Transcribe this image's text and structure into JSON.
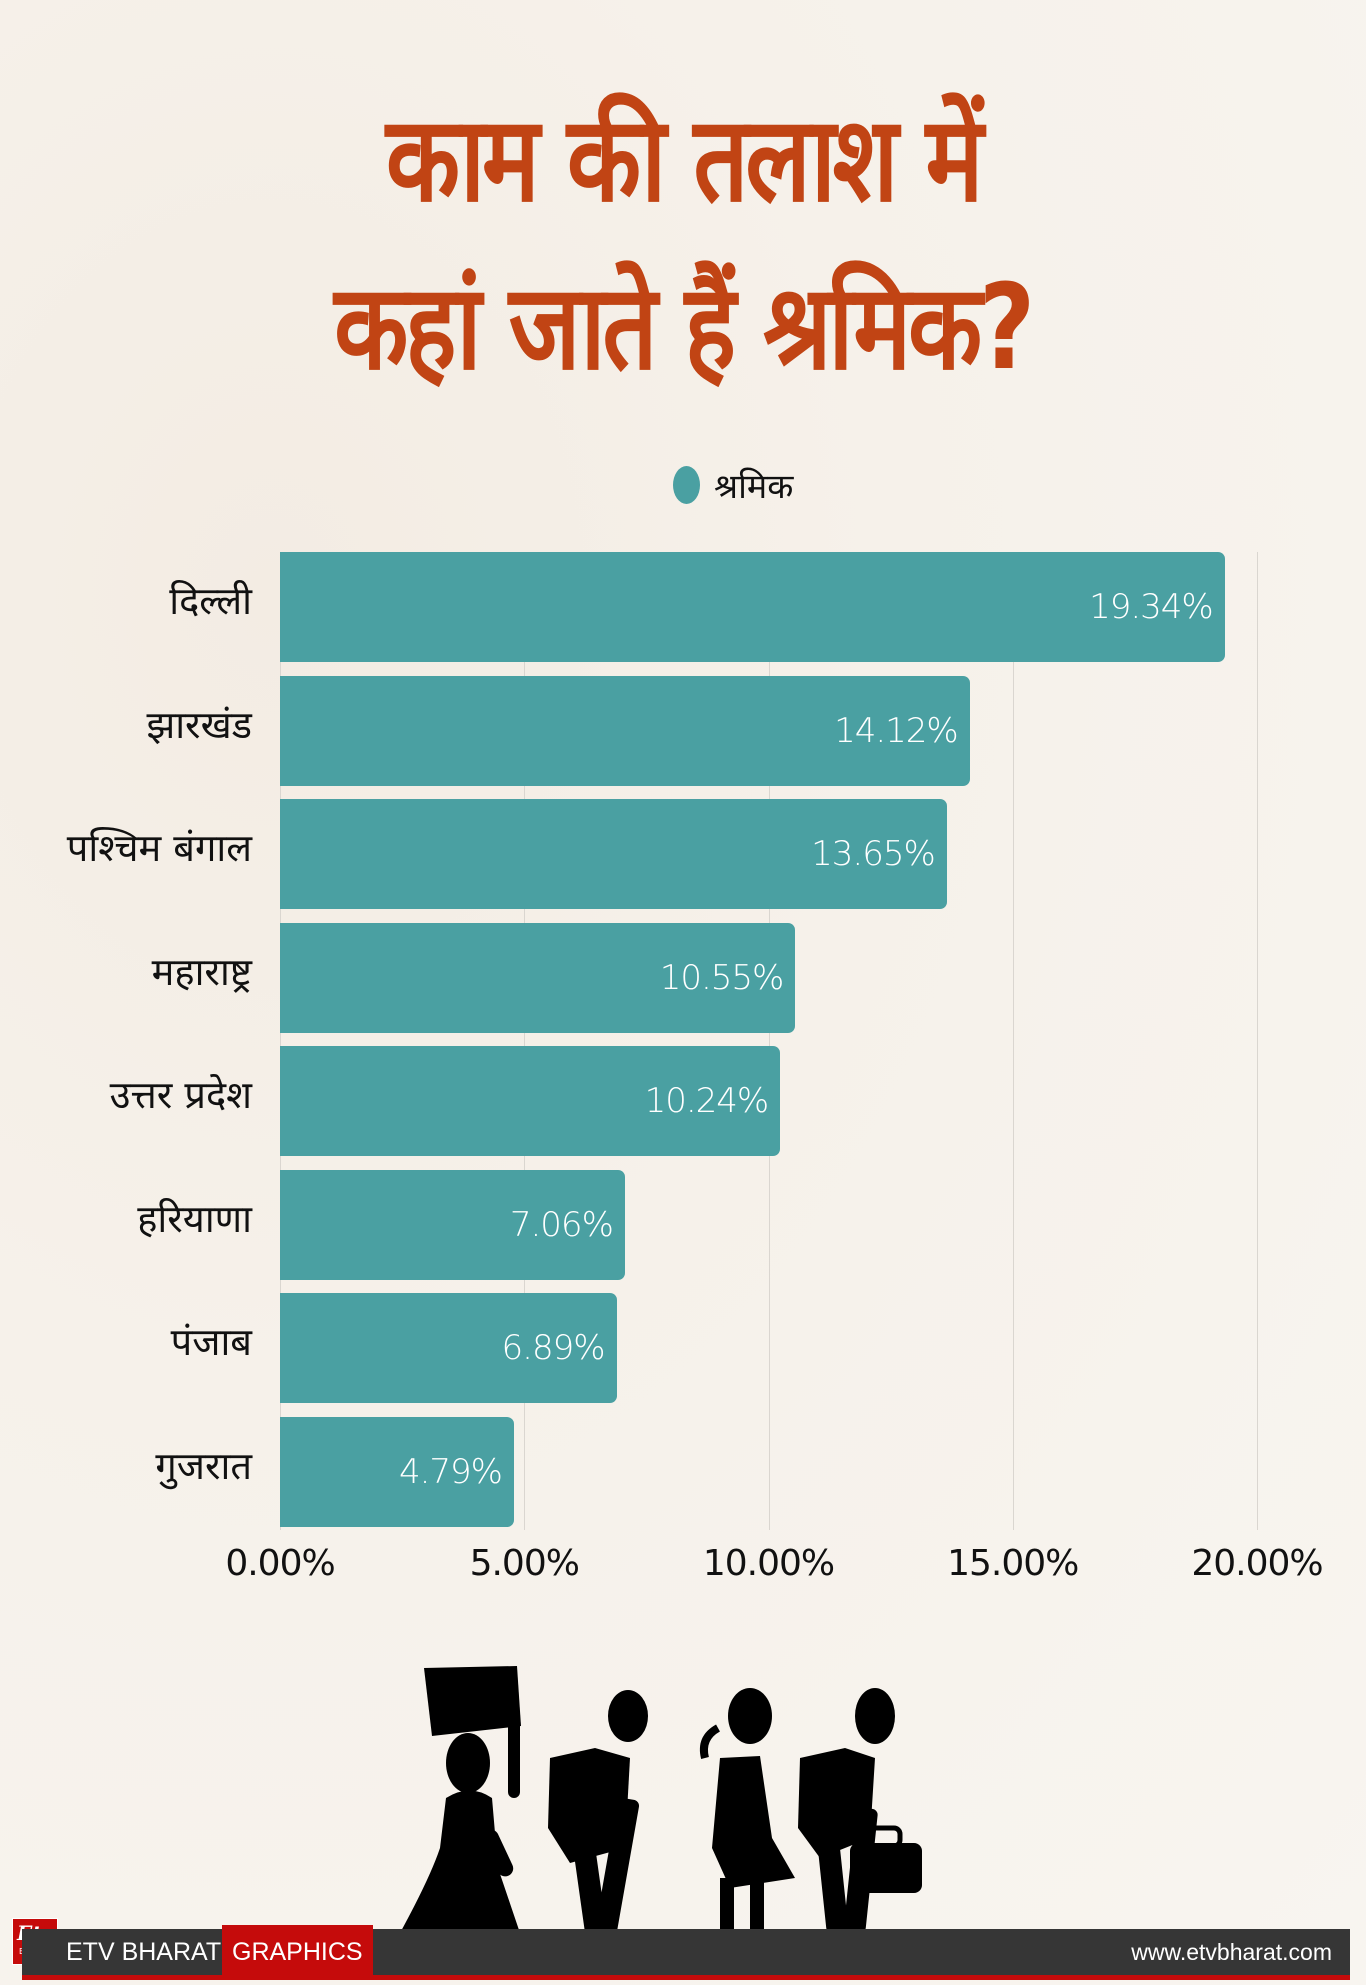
{
  "title": {
    "line1": "काम की तलाश में",
    "line2": "कहां जाते हैं श्रमिक?"
  },
  "legend": {
    "label": "श्रमिक",
    "color": "#4aa0a2"
  },
  "colors": {
    "bar": "#4aa0a2",
    "title": "#c14414",
    "footer_bg": "#363636",
    "footer_accent": "#c50b0b"
  },
  "chart_data": {
    "type": "bar",
    "orientation": "horizontal",
    "title": "काम की तलाश में कहां जाते हैं श्रमिक?",
    "categories": [
      "दिल्ली",
      "झारखंड",
      "पश्चिम बंगाल",
      "महाराष्ट्र",
      "उत्तर प्रदेश",
      "हरियाणा",
      "पंजाब",
      "गुजरात"
    ],
    "series": [
      {
        "name": "श्रमिक",
        "values": [
          19.34,
          14.12,
          13.65,
          10.55,
          10.24,
          7.06,
          6.89,
          4.79
        ]
      }
    ],
    "value_labels": [
      "19.34%",
      "14.12%",
      "13.65%",
      "10.55%",
      "10.24%",
      "7.06%",
      "6.89%",
      "4.79%"
    ],
    "xlabel": "",
    "ylabel": "",
    "xlim": [
      0,
      20
    ],
    "x_ticks": [
      "0.00%",
      "5.00%",
      "10.00%",
      "15.00%",
      "20.00%"
    ],
    "grid": true,
    "legend_position": "top"
  },
  "illustration": {
    "icon": "migrant-workers-walking-icon"
  },
  "footer": {
    "logo_top": "Etv",
    "logo_bottom": "BHARAT",
    "brand": "ETV BHARAT",
    "section": "GRAPHICS",
    "url": "www.etvbharat.com"
  }
}
